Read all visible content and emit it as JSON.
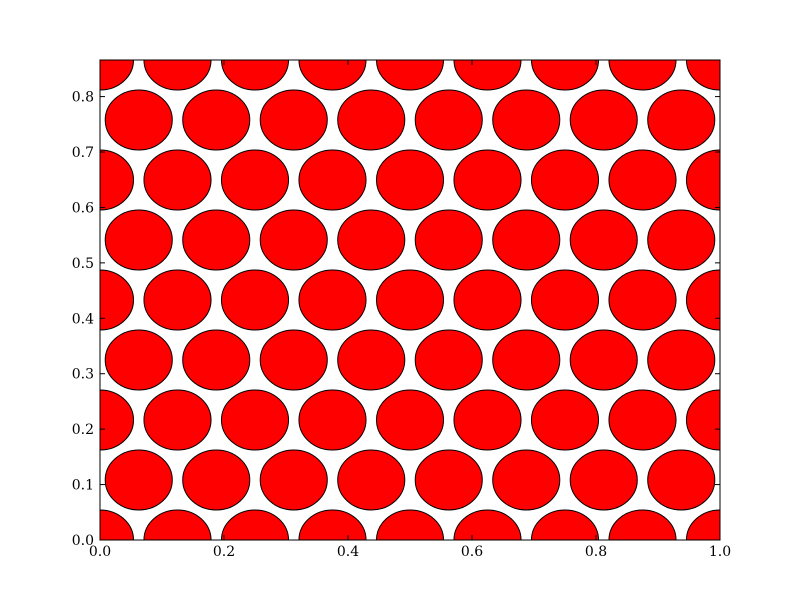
{
  "chart_data": {
    "type": "scatter",
    "title": "",
    "xlabel": "",
    "ylabel": "",
    "xlim": [
      0,
      1
    ],
    "ylim": [
      0,
      0.866
    ],
    "xticks": [
      0.0,
      0.2,
      0.4,
      0.6,
      0.8,
      1.0
    ],
    "yticks": [
      0.0,
      0.1,
      0.2,
      0.3,
      0.4,
      0.5,
      0.6,
      0.7,
      0.8
    ],
    "xtick_labels": [
      "0.0",
      "0.2",
      "0.4",
      "0.6",
      "0.8",
      "1.0"
    ],
    "ytick_labels": [
      "0.0",
      "0.1",
      "0.2",
      "0.3",
      "0.4",
      "0.5",
      "0.6",
      "0.7",
      "0.8"
    ],
    "grid": false,
    "legend": "none",
    "marker": "circle",
    "marker_radius": 0.0541,
    "marker_fill": "#ff0000",
    "marker_edge": "#000000",
    "lattice": "hexagonal",
    "row_spacing": 0.10825,
    "even_rows_x": [
      0.0,
      0.125,
      0.25,
      0.375,
      0.5,
      0.625,
      0.75,
      0.875,
      1.0
    ],
    "odd_rows_x": [
      0.0625,
      0.1875,
      0.3125,
      0.4375,
      0.5625,
      0.6875,
      0.8125,
      0.9375
    ],
    "rows_y": [
      0.0,
      0.10825,
      0.2165,
      0.32475,
      0.433,
      0.54125,
      0.6495,
      0.75775,
      0.866
    ]
  }
}
